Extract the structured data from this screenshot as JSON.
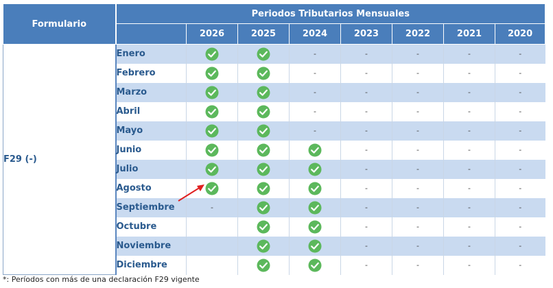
{
  "table": {
    "formulario_header": "Formulario",
    "periodos_header": "Periodos Tributarios Mensuales",
    "years": [
      "2026",
      "2025",
      "2024",
      "2023",
      "2022",
      "2021",
      "2020"
    ],
    "form_label": "F29 (-)",
    "rows": [
      {
        "month": "Enero",
        "cells": [
          "check",
          "check",
          "-",
          "-",
          "-",
          "-",
          "-"
        ]
      },
      {
        "month": "Febrero",
        "cells": [
          "check",
          "check",
          "-",
          "-",
          "-",
          "-",
          "-"
        ]
      },
      {
        "month": "Marzo",
        "cells": [
          "check",
          "check",
          "-",
          "-",
          "-",
          "-",
          "-"
        ]
      },
      {
        "month": "Abril",
        "cells": [
          "check",
          "check",
          "-",
          "-",
          "-",
          "-",
          "-"
        ]
      },
      {
        "month": "Mayo",
        "cells": [
          "check",
          "check",
          "-",
          "-",
          "-",
          "-",
          "-"
        ]
      },
      {
        "month": "Junio",
        "cells": [
          "check",
          "check",
          "check",
          "-",
          "-",
          "-",
          "-"
        ]
      },
      {
        "month": "Julio",
        "cells": [
          "check",
          "check",
          "check",
          "-",
          "-",
          "-",
          "-"
        ]
      },
      {
        "month": "Agosto",
        "cells": [
          "check",
          "check",
          "check",
          "-",
          "-",
          "-",
          "-"
        ]
      },
      {
        "month": "Septiembre",
        "cells": [
          "-",
          "check",
          "check",
          "-",
          "-",
          "-",
          "-"
        ]
      },
      {
        "month": "Octubre",
        "cells": [
          "",
          "check",
          "check",
          "-",
          "-",
          "-",
          "-"
        ]
      },
      {
        "month": "Noviembre",
        "cells": [
          "",
          "check",
          "check",
          "-",
          "-",
          "-",
          "-"
        ]
      },
      {
        "month": "Diciembre",
        "cells": [
          "",
          "check",
          "check",
          "-",
          "-",
          "-",
          "-"
        ]
      }
    ]
  },
  "footnote": "*: Períodos con más de una declaración F29 vigente",
  "colors": {
    "header_bg": "#4a7ebb",
    "row_alt_bg": "#c9daf0",
    "check_green": "#5cb85c",
    "annotation_arrow": "#e02020"
  },
  "icons": {
    "check": "check-circle-icon"
  }
}
